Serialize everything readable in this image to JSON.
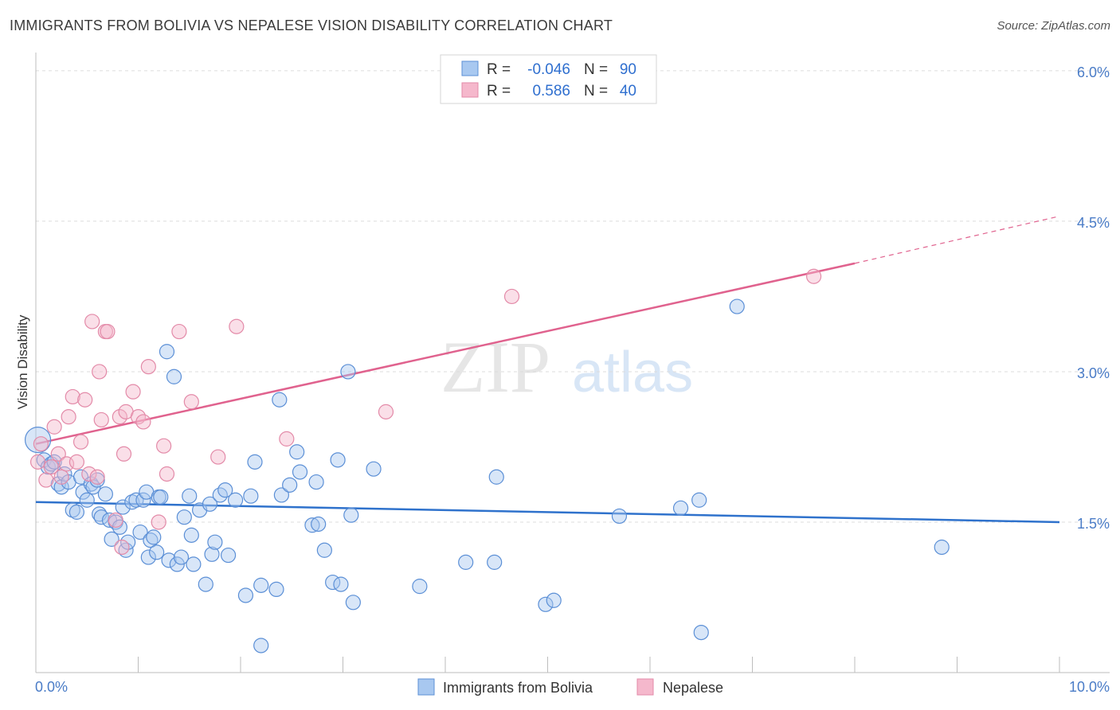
{
  "title": "IMMIGRANTS FROM BOLIVIA VS NEPALESE VISION DISABILITY CORRELATION CHART",
  "source": "Source: ZipAtlas.com",
  "watermark": {
    "left": "ZIP",
    "right": "atlas"
  },
  "colors": {
    "blue_fill": "#a8c8f0",
    "blue_stroke": "#5b8fd6",
    "blue_line": "#2f72cc",
    "pink_fill": "#f5b8cc",
    "pink_stroke": "#e38aa8",
    "pink_line": "#e0628e",
    "grid": "#dcdcdc",
    "axis_text": "#4a7cc7"
  },
  "legend": {
    "rows": [
      {
        "r_label": "R =",
        "r_value": "-0.046",
        "n_label": "N =",
        "n_value": "90"
      },
      {
        "r_label": "R =",
        "r_value": "0.586",
        "n_label": "N =",
        "n_value": "40"
      }
    ]
  },
  "chart_data": {
    "type": "scatter",
    "title": "IMMIGRANTS FROM BOLIVIA VS NEPALESE VISION DISABILITY CORRELATION CHART",
    "xlabel": "",
    "ylabel": "Vision Disability",
    "xlim": [
      0,
      10
    ],
    "ylim": [
      0,
      6.15
    ],
    "x_tick_labels": {
      "min": "0.0%",
      "max": "10.0%"
    },
    "y_ticks": [
      1.5,
      3.0,
      4.5,
      6.0
    ],
    "y_tick_labels": [
      "1.5%",
      "3.0%",
      "4.5%",
      "6.0%"
    ],
    "series": [
      {
        "name": "Immigrants from Bolivia",
        "r": -0.046,
        "n": 90,
        "trend": {
          "x0": 0.0,
          "y0": 1.7,
          "x1": 10.0,
          "y1": 1.5
        },
        "points": [
          [
            0.02,
            2.32
          ],
          [
            0.08,
            2.12
          ],
          [
            0.12,
            2.05
          ],
          [
            0.15,
            2.08
          ],
          [
            0.18,
            2.1
          ],
          [
            0.22,
            1.88
          ],
          [
            0.25,
            1.85
          ],
          [
            0.28,
            1.98
          ],
          [
            0.32,
            1.9
          ],
          [
            0.36,
            1.62
          ],
          [
            0.4,
            1.6
          ],
          [
            0.44,
            1.95
          ],
          [
            0.46,
            1.8
          ],
          [
            0.5,
            1.72
          ],
          [
            0.54,
            1.88
          ],
          [
            0.56,
            1.85
          ],
          [
            0.6,
            1.92
          ],
          [
            0.62,
            1.58
          ],
          [
            0.64,
            1.55
          ],
          [
            0.68,
            1.78
          ],
          [
            0.72,
            1.52
          ],
          [
            0.74,
            1.33
          ],
          [
            0.78,
            1.5
          ],
          [
            0.82,
            1.45
          ],
          [
            0.85,
            1.65
          ],
          [
            0.88,
            1.22
          ],
          [
            0.9,
            1.3
          ],
          [
            0.94,
            1.7
          ],
          [
            0.98,
            1.72
          ],
          [
            1.02,
            1.4
          ],
          [
            1.05,
            1.72
          ],
          [
            1.08,
            1.8
          ],
          [
            1.1,
            1.15
          ],
          [
            1.12,
            1.32
          ],
          [
            1.15,
            1.35
          ],
          [
            1.18,
            1.2
          ],
          [
            1.2,
            1.75
          ],
          [
            1.22,
            1.75
          ],
          [
            1.28,
            3.2
          ],
          [
            1.3,
            1.12
          ],
          [
            1.35,
            2.95
          ],
          [
            1.38,
            1.08
          ],
          [
            1.42,
            1.15
          ],
          [
            1.45,
            1.55
          ],
          [
            1.5,
            1.76
          ],
          [
            1.52,
            1.37
          ],
          [
            1.54,
            1.08
          ],
          [
            1.6,
            1.62
          ],
          [
            1.66,
            0.88
          ],
          [
            1.7,
            1.68
          ],
          [
            1.72,
            1.18
          ],
          [
            1.75,
            1.3
          ],
          [
            1.8,
            1.77
          ],
          [
            1.85,
            1.82
          ],
          [
            1.88,
            1.17
          ],
          [
            1.95,
            1.72
          ],
          [
            2.05,
            0.77
          ],
          [
            2.1,
            1.76
          ],
          [
            2.14,
            2.1
          ],
          [
            2.2,
            0.87
          ],
          [
            2.2,
            0.27
          ],
          [
            2.35,
            0.83
          ],
          [
            2.38,
            2.72
          ],
          [
            2.4,
            1.77
          ],
          [
            2.48,
            1.87
          ],
          [
            2.55,
            2.2
          ],
          [
            2.58,
            2.0
          ],
          [
            2.7,
            1.47
          ],
          [
            2.74,
            1.9
          ],
          [
            2.76,
            1.48
          ],
          [
            2.82,
            1.22
          ],
          [
            2.9,
            0.9
          ],
          [
            2.95,
            2.12
          ],
          [
            2.98,
            0.88
          ],
          [
            3.05,
            3.0
          ],
          [
            3.08,
            1.57
          ],
          [
            3.1,
            0.7
          ],
          [
            3.3,
            2.03
          ],
          [
            3.75,
            0.86
          ],
          [
            4.2,
            1.1
          ],
          [
            4.48,
            1.1
          ],
          [
            4.5,
            1.95
          ],
          [
            4.98,
            0.68
          ],
          [
            5.06,
            0.72
          ],
          [
            5.7,
            1.56
          ],
          [
            6.3,
            1.64
          ],
          [
            6.48,
            1.72
          ],
          [
            6.5,
            0.4
          ],
          [
            6.85,
            3.65
          ],
          [
            8.85,
            1.25
          ]
        ]
      },
      {
        "name": "Nepalese",
        "r": 0.586,
        "n": 40,
        "trend": {
          "x0": 0.0,
          "y0": 2.28,
          "x1": 8.0,
          "y1": 4.08,
          "dash_x1": 10.0,
          "dash_y1": 4.55
        },
        "points": [
          [
            0.02,
            2.1
          ],
          [
            0.05,
            2.28
          ],
          [
            0.1,
            1.92
          ],
          [
            0.15,
            2.05
          ],
          [
            0.18,
            2.45
          ],
          [
            0.22,
            2.18
          ],
          [
            0.25,
            1.95
          ],
          [
            0.3,
            2.08
          ],
          [
            0.32,
            2.55
          ],
          [
            0.36,
            2.75
          ],
          [
            0.4,
            2.1
          ],
          [
            0.44,
            2.3
          ],
          [
            0.48,
            2.72
          ],
          [
            0.52,
            1.98
          ],
          [
            0.55,
            3.5
          ],
          [
            0.6,
            1.95
          ],
          [
            0.62,
            3.0
          ],
          [
            0.64,
            2.52
          ],
          [
            0.68,
            3.4
          ],
          [
            0.7,
            3.4
          ],
          [
            0.78,
            1.52
          ],
          [
            0.82,
            2.55
          ],
          [
            0.84,
            1.25
          ],
          [
            0.86,
            2.18
          ],
          [
            0.88,
            2.6
          ],
          [
            0.95,
            2.8
          ],
          [
            1.0,
            2.55
          ],
          [
            1.05,
            2.5
          ],
          [
            1.1,
            3.05
          ],
          [
            1.2,
            1.5
          ],
          [
            1.25,
            2.26
          ],
          [
            1.28,
            1.98
          ],
          [
            1.4,
            3.4
          ],
          [
            1.52,
            2.7
          ],
          [
            1.78,
            2.15
          ],
          [
            1.96,
            3.45
          ],
          [
            2.45,
            2.33
          ],
          [
            3.42,
            2.6
          ],
          [
            4.65,
            3.75
          ],
          [
            7.6,
            3.95
          ]
        ]
      }
    ]
  }
}
